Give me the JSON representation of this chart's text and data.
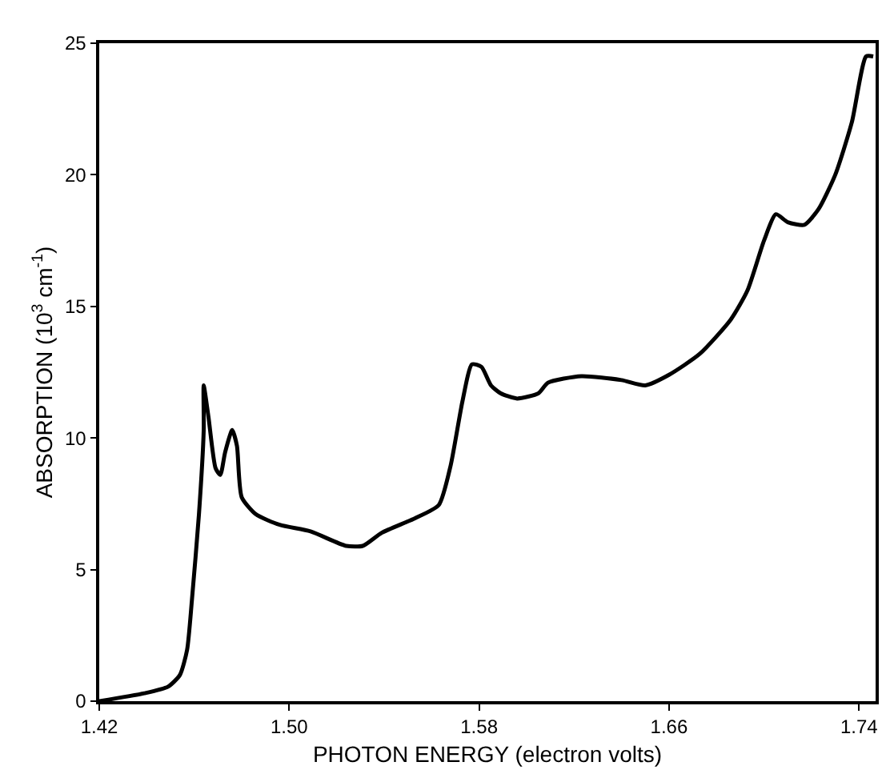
{
  "chart_data": {
    "type": "line",
    "xlabel": "PHOTON ENERGY (electron volts)",
    "ylabel": "ABSORPTION (10$^{3}$ cm$^{-1}$)",
    "x": [
      1.42,
      1.439,
      1.449,
      1.454,
      1.457,
      1.459,
      1.462,
      1.464,
      1.464,
      1.466,
      1.469,
      1.471,
      1.473,
      1.476,
      1.478,
      1.48,
      1.486,
      1.496,
      1.509,
      1.524,
      1.531,
      1.539,
      1.553,
      1.563,
      1.568,
      1.573,
      1.577,
      1.581,
      1.585,
      1.589,
      1.596,
      1.605,
      1.609,
      1.623,
      1.64,
      1.65,
      1.66,
      1.673,
      1.686,
      1.693,
      1.7,
      1.705,
      1.71,
      1.717,
      1.723,
      1.73,
      1.737,
      1.743,
      1.746
    ],
    "series": [
      {
        "color": "#000000",
        "values": [
          0,
          0.3,
          0.55,
          1.0,
          1.95,
          3.8,
          7.1,
          10.3,
          12.0,
          10.8,
          8.85,
          8.6,
          9.45,
          10.3,
          9.7,
          7.75,
          7.1,
          6.7,
          6.45,
          5.9,
          5.9,
          6.4,
          6.95,
          7.45,
          8.95,
          11.4,
          12.8,
          12.7,
          12.0,
          11.7,
          11.5,
          11.7,
          12.1,
          12.35,
          12.2,
          12.0,
          12.4,
          13.2,
          14.5,
          15.6,
          17.5,
          18.5,
          18.2,
          18.1,
          18.7,
          20.0,
          22.0,
          24.5,
          24.5
        ]
      }
    ],
    "xlim": [
      1.42,
      1.747
    ],
    "ylim": [
      0,
      25
    ],
    "xticks": [
      1.42,
      {
        "value": 1.5,
        "label": "1.50"
      },
      1.58,
      1.66,
      1.74
    ],
    "yticks": [
      0,
      5,
      10,
      15,
      20,
      25
    ],
    "grid": false,
    "line_style": "solid",
    "marker": "none"
  }
}
